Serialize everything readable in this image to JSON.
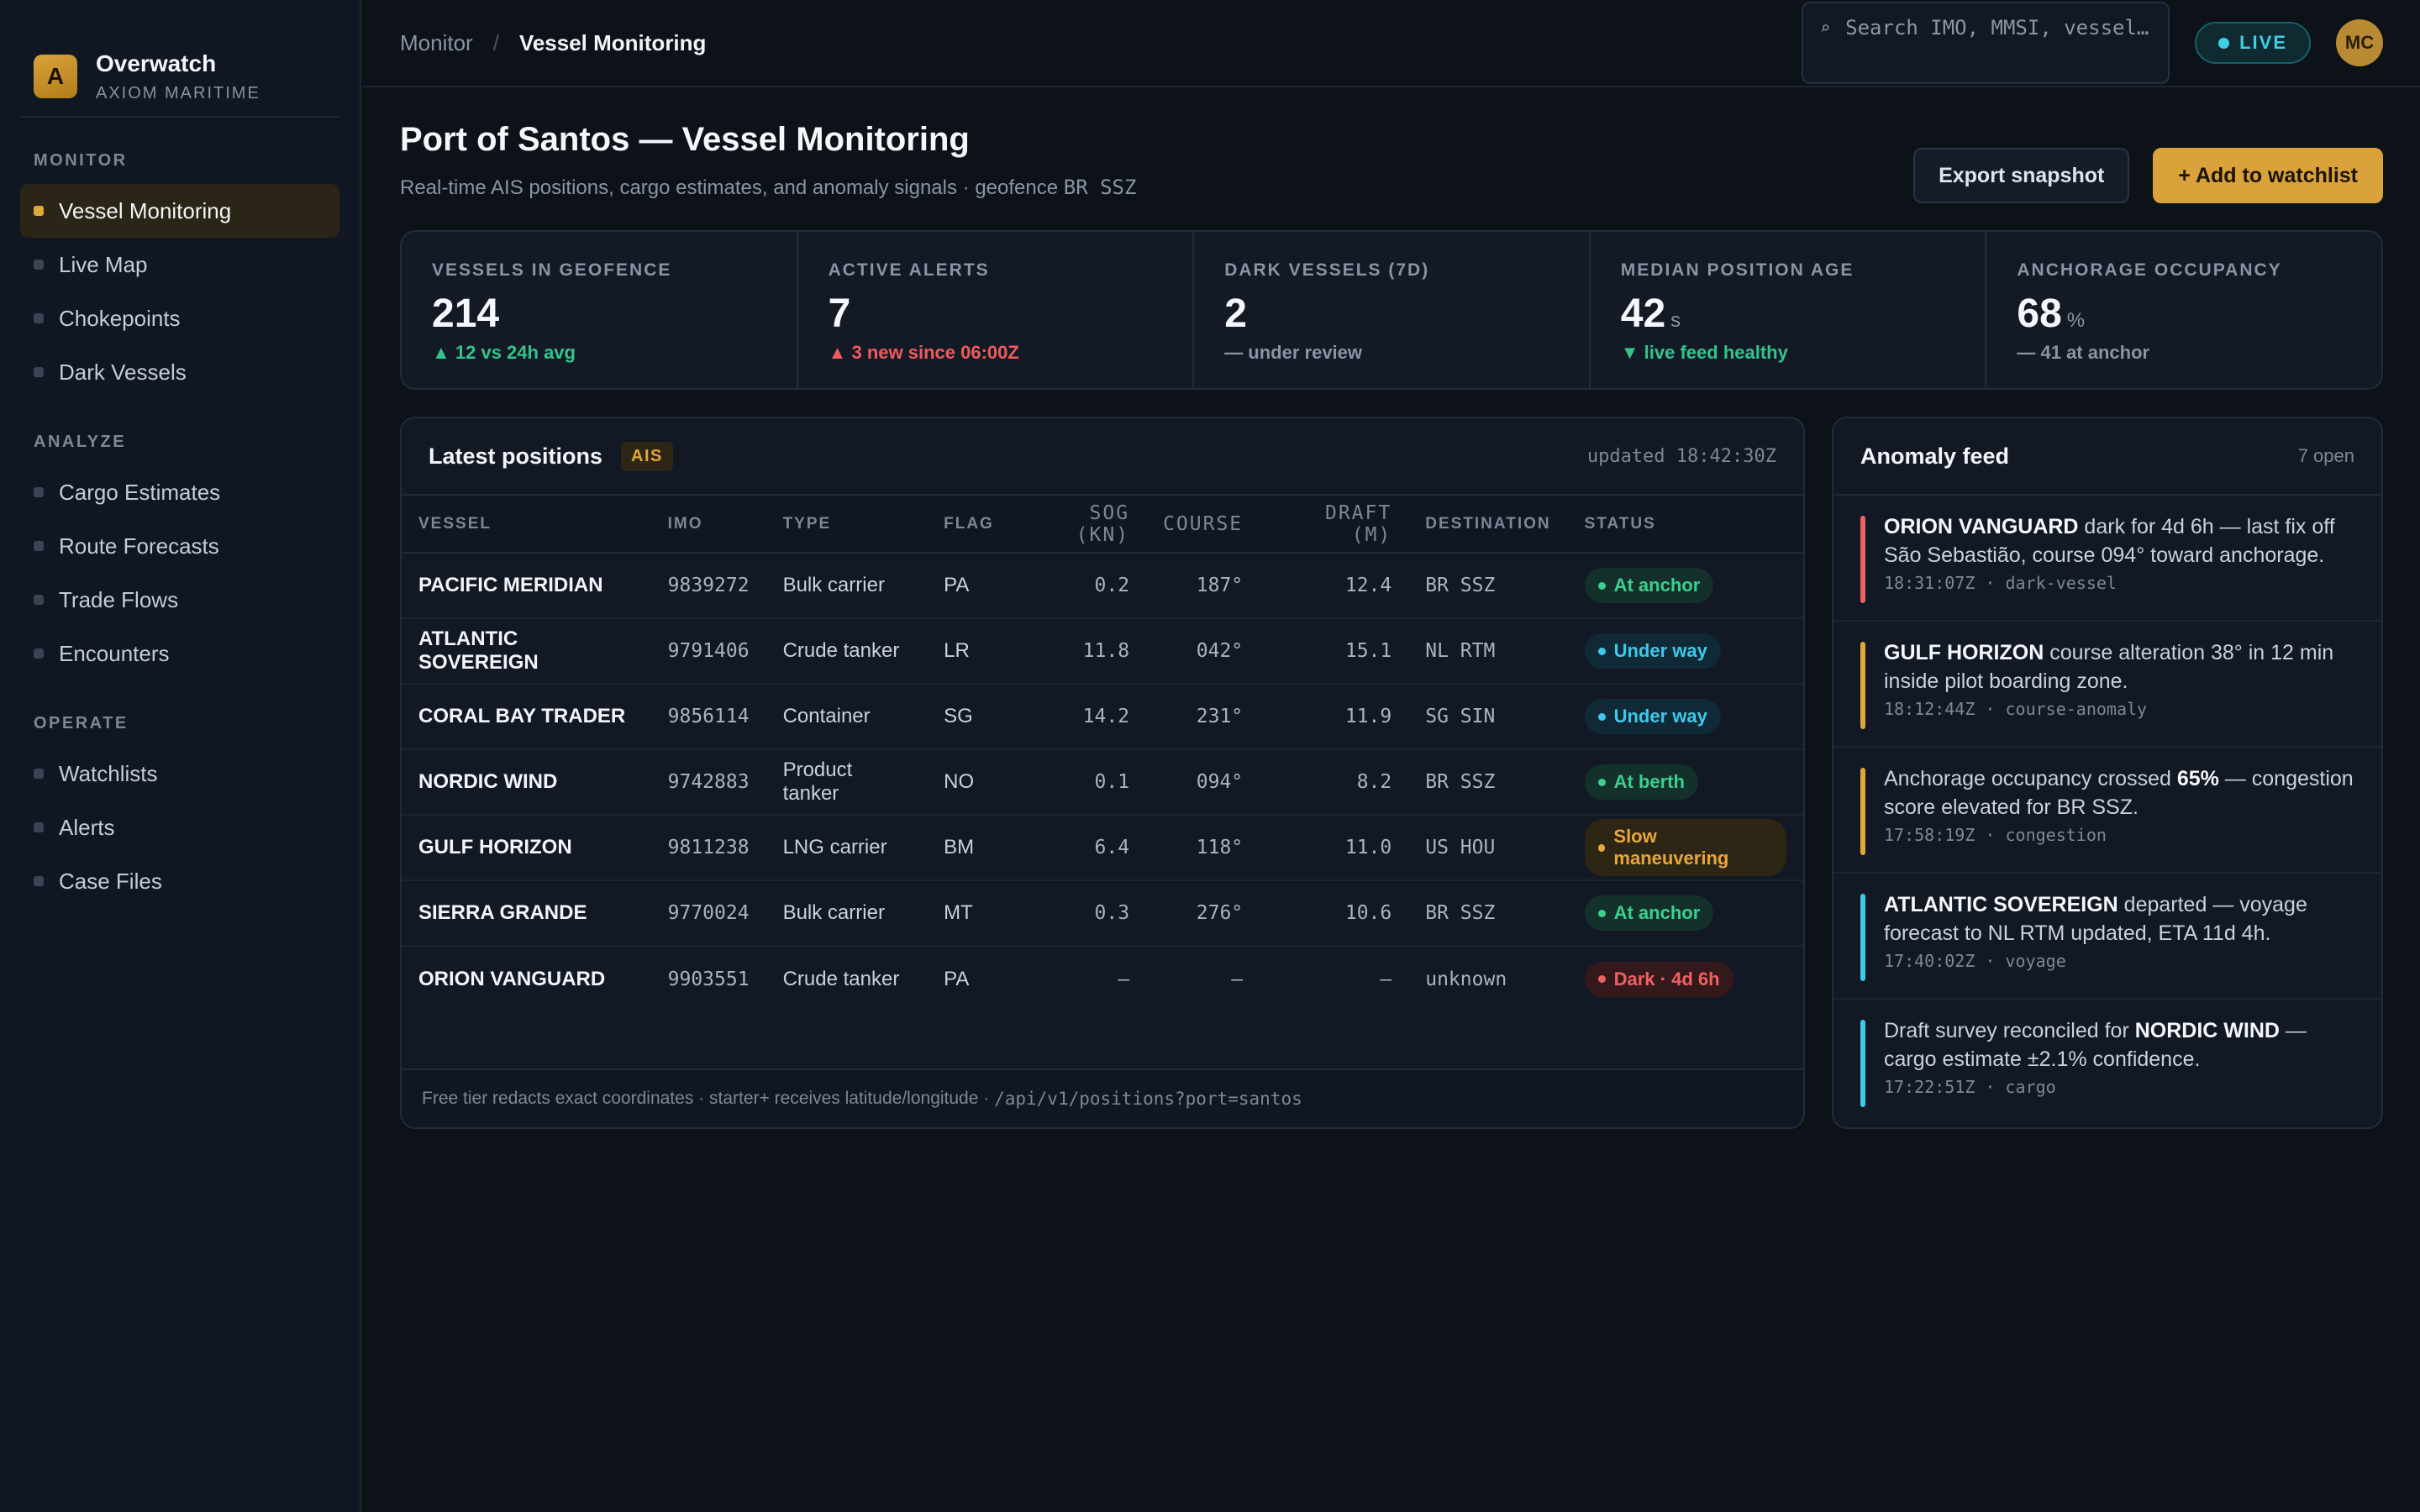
{
  "brand": {
    "logo_letter": "A",
    "name": "Overwatch",
    "org": "AXIOM MARITIME"
  },
  "nav": {
    "monitor": {
      "heading": "MONITOR",
      "items": [
        "Vessel Monitoring",
        "Live Map",
        "Chokepoints",
        "Dark Vessels"
      ]
    },
    "analyze": {
      "heading": "ANALYZE",
      "items": [
        "Cargo Estimates",
        "Route Forecasts",
        "Trade Flows",
        "Encounters"
      ]
    },
    "operate": {
      "heading": "OPERATE",
      "items": [
        "Watchlists",
        "Alerts",
        "Case Files"
      ]
    },
    "active": "Vessel Monitoring"
  },
  "topbar": {
    "breadcrumb": [
      "Monitor",
      "Vessel Monitoring"
    ],
    "separator": "/",
    "search_placeholder": "Search IMO, MMSI, vessel…",
    "live_label": "LIVE",
    "avatar_initials": "MC"
  },
  "header": {
    "title": "Port of Santos — Vessel Monitoring",
    "subtitle_text": "Real-time AIS positions, cargo estimates, and anomaly signals · geofence ",
    "subtitle_code": "BR SSZ",
    "export_label": "Export snapshot",
    "watchlist_label": "+ Add to watchlist"
  },
  "kpis": [
    {
      "label": "VESSELS IN GEOFENCE",
      "value": "214",
      "unit": "",
      "delta": "▲ 12 vs 24h avg",
      "tone": "green"
    },
    {
      "label": "ACTIVE ALERTS",
      "value": "7",
      "unit": "",
      "delta": "▲ 3 new since 06:00Z",
      "tone": "red"
    },
    {
      "label": "DARK VESSELS (7D)",
      "value": "2",
      "unit": "",
      "delta": "— under review",
      "tone": "muted"
    },
    {
      "label": "MEDIAN POSITION AGE",
      "value": "42",
      "unit": "s",
      "delta": "▼ live feed healthy",
      "tone": "green"
    },
    {
      "label": "ANCHORAGE OCCUPANCY",
      "value": "68",
      "unit": "%",
      "delta": "— 41 at anchor",
      "tone": "muted"
    }
  ],
  "positions": {
    "title": "Latest positions",
    "badge": "AIS",
    "updated": "updated 18:42:30Z",
    "columns": [
      "VESSEL",
      "IMO",
      "TYPE",
      "FLAG",
      "SOG (KN)",
      "COURSE",
      "DRAFT (M)",
      "DESTINATION",
      "STATUS"
    ],
    "rows": [
      {
        "vessel": "PACIFIC MERIDIAN",
        "imo": "9839272",
        "type": "Bulk carrier",
        "flag": "PA",
        "sog": "0.2",
        "course": "187°",
        "draft": "12.4",
        "dest": "BR SSZ",
        "status": "At anchor",
        "tone": "green"
      },
      {
        "vessel": "ATLANTIC SOVEREIGN",
        "imo": "9791406",
        "type": "Crude tanker",
        "flag": "LR",
        "sog": "11.8",
        "course": "042°",
        "draft": "15.1",
        "dest": "NL RTM",
        "status": "Under way",
        "tone": "cyan"
      },
      {
        "vessel": "CORAL BAY TRADER",
        "imo": "9856114",
        "type": "Container",
        "flag": "SG",
        "sog": "14.2",
        "course": "231°",
        "draft": "11.9",
        "dest": "SG SIN",
        "status": "Under way",
        "tone": "cyan"
      },
      {
        "vessel": "NORDIC WIND",
        "imo": "9742883",
        "type": "Product tanker",
        "flag": "NO",
        "sog": "0.1",
        "course": "094°",
        "draft": "8.2",
        "dest": "BR SSZ",
        "status": "At berth",
        "tone": "green"
      },
      {
        "vessel": "GULF HORIZON",
        "imo": "9811238",
        "type": "LNG carrier",
        "flag": "BM",
        "sog": "6.4",
        "course": "118°",
        "draft": "11.0",
        "dest": "US HOU",
        "status": "Slow maneuvering",
        "tone": "amber"
      },
      {
        "vessel": "SIERRA GRANDE",
        "imo": "9770024",
        "type": "Bulk carrier",
        "flag": "MT",
        "sog": "0.3",
        "course": "276°",
        "draft": "10.6",
        "dest": "BR SSZ",
        "status": "At anchor",
        "tone": "green"
      },
      {
        "vessel": "ORION VANGUARD",
        "imo": "9903551",
        "type": "Crude tanker",
        "flag": "PA",
        "sog": "—",
        "course": "—",
        "draft": "—",
        "dest": "unknown",
        "status": "Dark · 4d 6h",
        "tone": "red"
      }
    ],
    "footer_text": "Free tier redacts exact coordinates · starter+ receives latitude/longitude · ",
    "footer_code": "/api/v1/positions?port=santos"
  },
  "anomaly": {
    "title": "Anomaly feed",
    "count": "7 open",
    "items": [
      {
        "bold": "ORION VANGUARD",
        "text": " dark for 4d 6h — last fix off São Sebastião, course 094° toward anchorage.",
        "pre": "",
        "meta": "18:31:07Z · dark-vessel",
        "tone": "red"
      },
      {
        "bold": "GULF HORIZON",
        "text": " course alteration 38° in 12 min inside pilot boarding zone.",
        "pre": "",
        "meta": "18:12:44Z · course-anomaly",
        "tone": "amber"
      },
      {
        "pre": "Anchorage occupancy crossed ",
        "bold": "65%",
        "text": " — congestion score elevated for BR SSZ.",
        "meta": "17:58:19Z · congestion",
        "tone": "amber"
      },
      {
        "bold": "ATLANTIC SOVEREIGN",
        "text": " departed — voyage forecast to NL RTM updated, ETA 11d 4h.",
        "pre": "",
        "meta": "17:40:02Z · voyage",
        "tone": "cyan"
      },
      {
        "pre": "Draft survey reconciled for ",
        "bold": "NORDIC WIND",
        "text": " — cargo estimate ±2.1% confidence.",
        "meta": "17:22:51Z · cargo",
        "tone": "cyan"
      }
    ]
  },
  "colors": {
    "accent": "#d9a23a",
    "live": "#3fd0e6",
    "ok": "#3cd08f",
    "alert": "#ef6161",
    "background": "#0d1219"
  }
}
